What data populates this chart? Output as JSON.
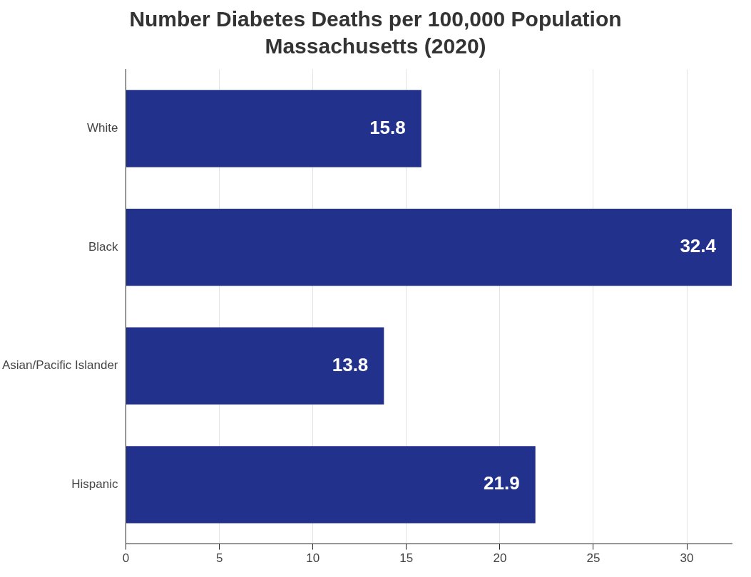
{
  "chart_data": {
    "type": "bar",
    "orientation": "horizontal",
    "title": "Number Diabetes Deaths per 100,000 Population",
    "subtitle": "Massachusetts (2020)",
    "categories": [
      "White",
      "Black",
      "Asian/Pacific Islander",
      "Hispanic"
    ],
    "values": [
      15.8,
      32.4,
      13.8,
      21.9
    ],
    "color": "#22318c",
    "xlim": [
      0,
      32.4
    ],
    "xticks": [
      0,
      5,
      10,
      15,
      20,
      25,
      30
    ],
    "grid": "x",
    "legend": false,
    "data_labels": true
  }
}
